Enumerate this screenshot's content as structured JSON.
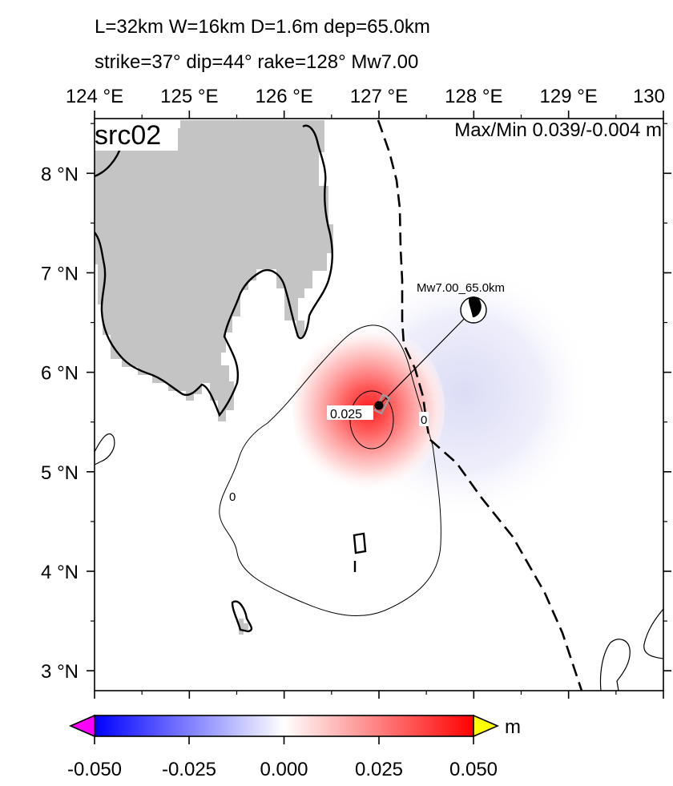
{
  "header": {
    "line1": "L=32km W=16km D=1.6m dep=65.0km",
    "line2": "strike=37° dip=44° rake=128° Mw7.00"
  },
  "map": {
    "panel_label": "src02",
    "maxmin_label": "Max/Min 0.039/-0.004 m",
    "lon_ticks": [
      {
        "value": 124,
        "label": "124 °E"
      },
      {
        "value": 125,
        "label": "125 °E"
      },
      {
        "value": 126,
        "label": "126 °E"
      },
      {
        "value": 127,
        "label": "127 °E"
      },
      {
        "value": 128,
        "label": "128 °E"
      },
      {
        "value": 129,
        "label": "129 °E"
      },
      {
        "value": 130,
        "label": "130"
      }
    ],
    "lat_ticks": [
      {
        "value": 8,
        "label": "8 °N"
      },
      {
        "value": 7,
        "label": "7 °N"
      },
      {
        "value": 6,
        "label": "6 °N"
      },
      {
        "value": 5,
        "label": "5 °N"
      },
      {
        "value": 4,
        "label": "4 °N"
      },
      {
        "value": 3,
        "label": "3 °N"
      }
    ],
    "lon_range": [
      124,
      130
    ],
    "lat_range": [
      2.8,
      8.55
    ],
    "land_color": "#c4c4c4",
    "epicenter": {
      "lon": 127.05,
      "lat": 5.8
    },
    "mechanism": {
      "lon": 128.0,
      "lat": 6.8,
      "label": "Mw7.00_65.0km"
    },
    "peak_uplift": {
      "lon": 126.93,
      "lat": 5.75
    },
    "subsidence_center": {
      "lon": 128.4,
      "lat": 6.0
    },
    "contour_labels": [
      {
        "text": "0.025",
        "lon": 126.78,
        "lat": 5.64
      },
      {
        "text": "0",
        "lon": 127.46,
        "lat": 5.67
      },
      {
        "text": "0",
        "lon": 125.46,
        "lat": 4.86
      }
    ]
  },
  "colorbar": {
    "tick_labels": [
      "-0.050",
      "-0.025",
      "0.000",
      "0.025",
      "0.050"
    ],
    "unit": "m",
    "range": [
      -0.05,
      0.05
    ],
    "colors": {
      "min": "#0000ff",
      "mid": "#ffffff",
      "max": "#ff0000",
      "under": "#ff00ff",
      "over": "#ffff00"
    }
  }
}
